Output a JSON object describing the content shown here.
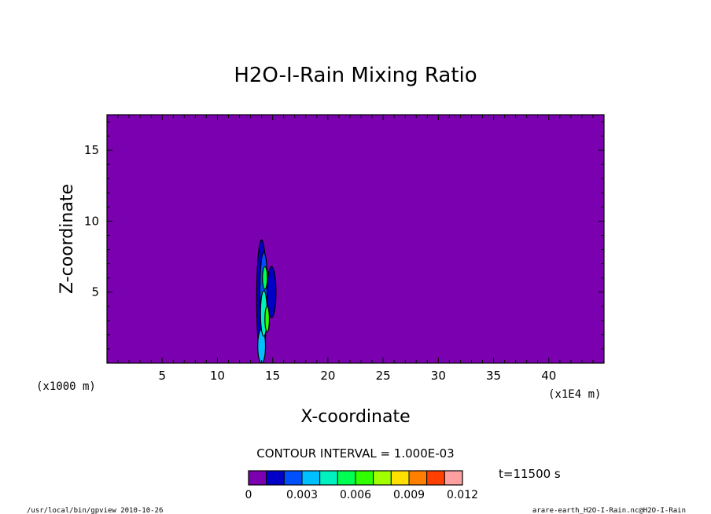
{
  "chart_data": {
    "type": "heatmap",
    "title": "H2O-I-Rain Mixing Ratio",
    "xlabel": "X-coordinate",
    "ylabel": "Z-coordinate",
    "x_unit_left": "(x1000 m)",
    "x_unit_right": "(x1E4 m)",
    "xlim": [
      0,
      45
    ],
    "ylim": [
      0,
      17.5
    ],
    "x_ticks": [
      5,
      10,
      15,
      20,
      25,
      30,
      35,
      40
    ],
    "y_ticks": [
      5,
      10,
      15
    ],
    "background_color": "#7b00b0",
    "field_extent": {
      "x": [
        13.5,
        15.5
      ],
      "z": [
        0,
        8.7
      ]
    },
    "contour_interval_label": "CONTOUR INTERVAL = 1.000E-03",
    "time_label": "t=11500 s",
    "colorbar": {
      "levels": [
        0,
        0.001,
        0.002,
        0.003,
        0.004,
        0.005,
        0.006,
        0.007,
        0.008,
        0.009,
        0.01,
        0.011,
        0.012
      ],
      "tick_labels": [
        "0",
        "0.003",
        "0.006",
        "0.009",
        "0.012"
      ],
      "colors": [
        "#7b00b0",
        "#0000c8",
        "#0050ff",
        "#00c0ff",
        "#00f0c0",
        "#00ff50",
        "#30ff00",
        "#a0ff00",
        "#ffe000",
        "#ff8000",
        "#ff4000",
        "#ff2020",
        "#ffa0a0"
      ]
    }
  },
  "footer": {
    "left": "/usr/local/bin/gpview  2010-10-26",
    "right": "arare-earth_H2O-I-Rain.nc@H2O-I-Rain"
  }
}
